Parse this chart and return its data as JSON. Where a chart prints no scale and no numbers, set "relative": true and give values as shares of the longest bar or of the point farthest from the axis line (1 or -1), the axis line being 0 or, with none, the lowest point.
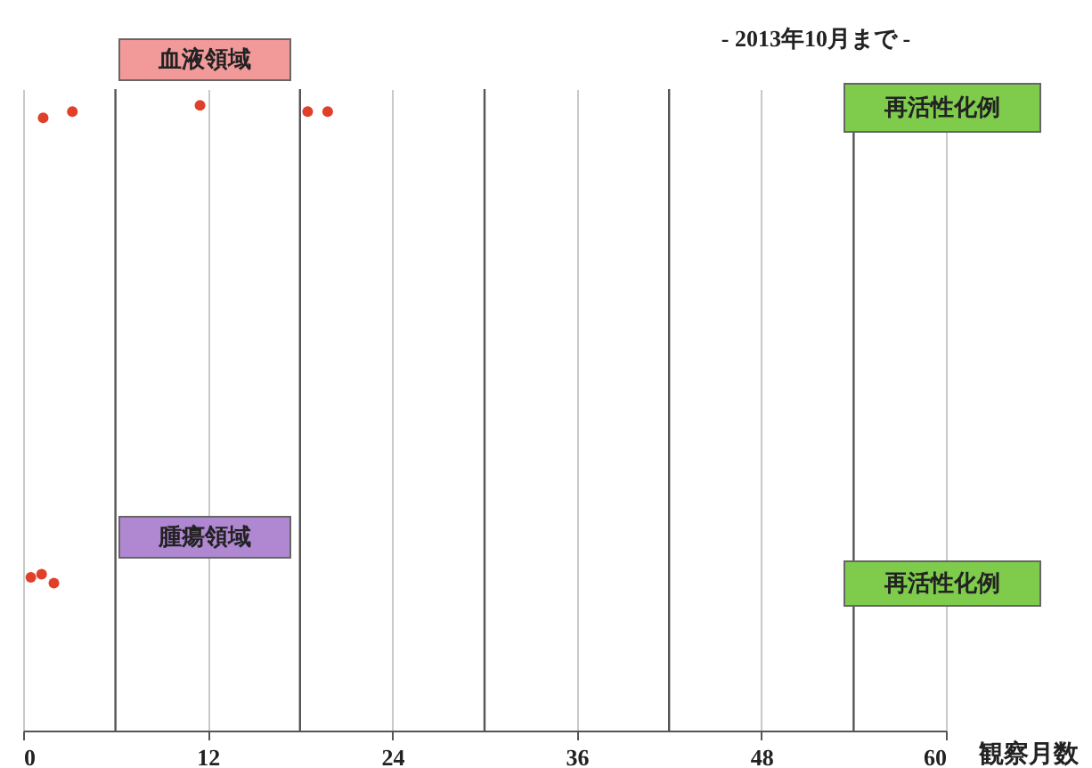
{
  "chart_data": {
    "type": "scatter",
    "subtitle": "- 2013年10月まで -",
    "xlabel": "観察月数",
    "relative": true,
    "series": [
      {
        "color": "#e0402a",
        "x": [
          1.3,
          3.2,
          11.5,
          18.5,
          19.8,
          0.5,
          1.2,
          2.0
        ],
        "values": [
          0.98,
          0.99,
          1.0,
          0.99,
          0.99,
          0.245,
          0.25,
          0.236
        ]
      }
    ],
    "xlim": [
      0,
      60
    ],
    "xticks": [
      0,
      12,
      24,
      36,
      48,
      60
    ],
    "grid": "x",
    "ref_lines": [
      {
        "axis": "x",
        "value": 6,
        "color": "#555555"
      },
      {
        "axis": "x",
        "value": 18,
        "color": "#555555"
      },
      {
        "axis": "x",
        "value": 30,
        "color": "#555555"
      },
      {
        "axis": "x",
        "value": 42,
        "color": "#555555"
      },
      {
        "axis": "x",
        "value": 54,
        "color": "#555555"
      }
    ],
    "annotations": [
      "血液領域",
      "腫瘍領域",
      "再活性化例",
      "再活性化例"
    ]
  }
}
